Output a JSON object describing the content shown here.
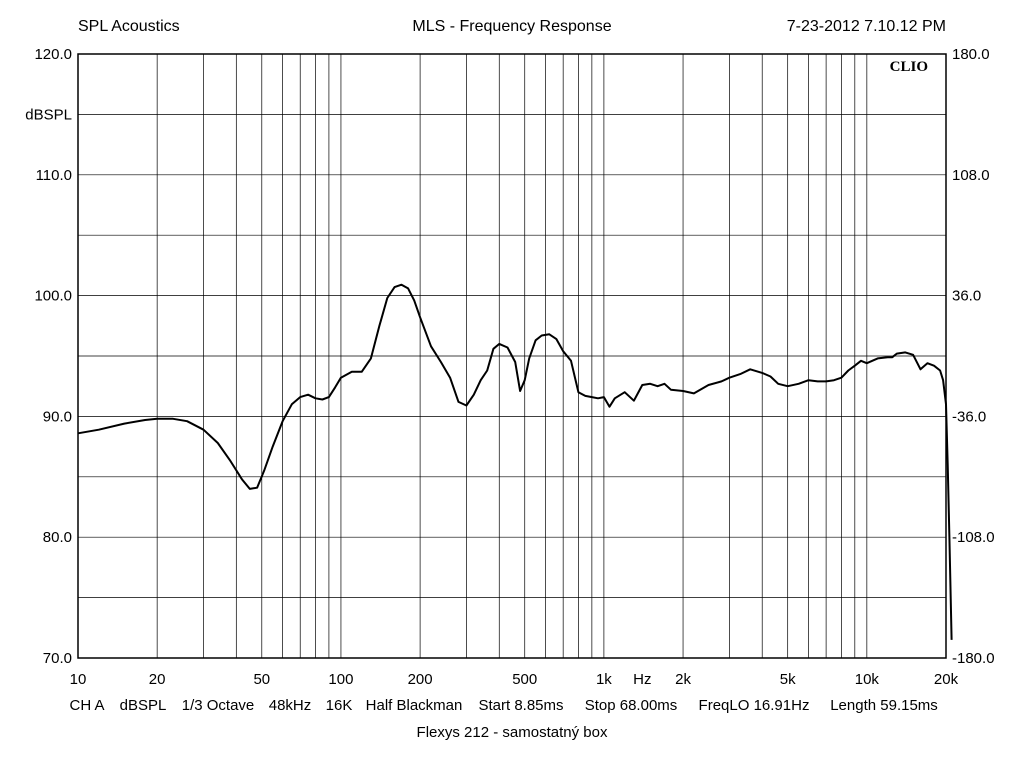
{
  "header": {
    "left": "SPL Acoustics",
    "center": "MLS - Frequency Response",
    "right": "7-23-2012 7.10.12 PM"
  },
  "logo_text": "CLIO",
  "params": [
    "CH A",
    "dBSPL",
    "1/3 Octave",
    "48kHz",
    "16K",
    "Half Blackman",
    "Start 8.85ms",
    "Stop 68.00ms",
    "FreqLO 16.91Hz",
    "Length 59.15ms"
  ],
  "caption": "Flexys 212 - samostatný box",
  "chart_data": {
    "type": "line",
    "title": "MLS - Frequency Response",
    "xscale": "log",
    "xlim": [
      10,
      20000
    ],
    "ylim": [
      70,
      120
    ],
    "ylabel": "dBSPL",
    "xunit_label": "Hz",
    "x_ticks": [
      {
        "value": 10,
        "label": "10"
      },
      {
        "value": 20,
        "label": "20"
      },
      {
        "value": 50,
        "label": "50"
      },
      {
        "value": 100,
        "label": "100"
      },
      {
        "value": 200,
        "label": "200"
      },
      {
        "value": 500,
        "label": "500"
      },
      {
        "value": 1000,
        "label": "1k"
      },
      {
        "value": 2000,
        "label": "2k"
      },
      {
        "value": 5000,
        "label": "5k"
      },
      {
        "value": 10000,
        "label": "10k"
      },
      {
        "value": 20000,
        "label": "20k"
      }
    ],
    "y_ticks": [
      {
        "value": 120,
        "label": "120.0"
      },
      {
        "value": 110,
        "label": "110.0"
      },
      {
        "value": 100,
        "label": "100.0"
      },
      {
        "value": 90,
        "label": "90.0"
      },
      {
        "value": 80,
        "label": "80.0"
      },
      {
        "value": 70,
        "label": "70.0"
      }
    ],
    "y2_ticks": [
      {
        "value": 120,
        "label": "180.0"
      },
      {
        "value": 110,
        "label": "108.0"
      },
      {
        "value": 100,
        "label": "36.0"
      },
      {
        "value": 90,
        "label": "-36.0"
      },
      {
        "value": 80,
        "label": "-108.0"
      },
      {
        "value": 70,
        "label": "-180.0"
      }
    ],
    "grid": true,
    "series": [
      {
        "x": [
          10,
          12,
          15,
          18,
          20,
          23,
          26,
          30,
          34,
          38,
          42,
          45,
          48,
          51,
          55,
          60,
          65,
          70,
          75,
          80,
          85,
          90,
          95,
          100,
          110,
          120,
          130,
          140,
          150,
          160,
          170,
          180,
          190,
          200,
          220,
          240,
          260,
          280,
          300,
          320,
          340,
          360,
          380,
          400,
          430,
          460,
          480,
          500,
          520,
          550,
          580,
          620,
          660,
          700,
          750,
          800,
          850,
          900,
          950,
          1000,
          1050,
          1100,
          1200,
          1300,
          1400,
          1500,
          1600,
          1700,
          1800,
          2000,
          2200,
          2500,
          2800,
          3000,
          3300,
          3600,
          4000,
          4300,
          4600,
          5000,
          5500,
          6000,
          6500,
          7000,
          7500,
          8000,
          8500,
          9000,
          9500,
          10000,
          11000,
          12000,
          12500,
          13000,
          14000,
          15000,
          16000,
          17000,
          18000,
          19000,
          19500,
          20000,
          20300,
          20600,
          21000
        ],
        "y": [
          88.6,
          88.9,
          89.4,
          89.7,
          89.8,
          89.8,
          89.6,
          88.9,
          87.8,
          86.3,
          84.8,
          84.0,
          84.1,
          85.5,
          87.5,
          89.6,
          91.0,
          91.6,
          91.8,
          91.5,
          91.4,
          91.6,
          92.4,
          93.2,
          93.7,
          93.7,
          94.8,
          97.5,
          99.8,
          100.7,
          100.9,
          100.6,
          99.6,
          98.2,
          95.8,
          94.5,
          93.2,
          91.2,
          90.9,
          91.8,
          93.0,
          93.8,
          95.6,
          96.0,
          95.7,
          94.5,
          92.1,
          93.0,
          94.8,
          96.3,
          96.7,
          96.8,
          96.4,
          95.4,
          94.6,
          92.0,
          91.7,
          91.6,
          91.5,
          91.6,
          90.8,
          91.5,
          92.0,
          91.3,
          92.6,
          92.7,
          92.5,
          92.7,
          92.2,
          92.1,
          91.9,
          92.6,
          92.9,
          93.2,
          93.5,
          93.9,
          93.6,
          93.3,
          92.7,
          92.5,
          92.7,
          93.0,
          92.9,
          92.9,
          93.0,
          93.2,
          93.8,
          94.2,
          94.6,
          94.4,
          94.8,
          94.9,
          94.9,
          95.2,
          95.3,
          95.1,
          93.9,
          94.4,
          94.2,
          93.8,
          93.0,
          91.0,
          86.0,
          80.0,
          71.5
        ]
      }
    ]
  }
}
